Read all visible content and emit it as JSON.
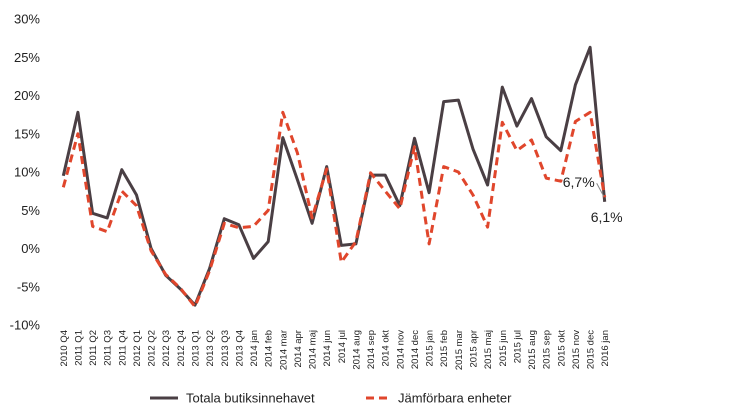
{
  "chart_data": {
    "type": "line",
    "title": "",
    "xlabel": "",
    "ylabel": "",
    "ylim": [
      -10,
      30
    ],
    "yticks": [
      -10,
      -5,
      0,
      5,
      10,
      15,
      20,
      25,
      30
    ],
    "ytick_labels": [
      "-10%",
      "-5%",
      "0%",
      "5%",
      "10%",
      "15%",
      "20%",
      "25%",
      "30%"
    ],
    "grid": false,
    "legend_position": "bottom",
    "categories": [
      "2010 Q4",
      "2011 Q1",
      "2011 Q2",
      "2011 Q3",
      "2011 Q4",
      "2012 Q1",
      "2012 Q2",
      "2012 Q3",
      "2012 Q4",
      "2013 Q1",
      "2013 Q2",
      "2013 Q3",
      "2013 Q4",
      "2014 jan",
      "2014 feb",
      "2014 mar",
      "2014 apr",
      "2014 maj",
      "2014 jun",
      "2014 jul",
      "2014 aug",
      "2014 sep",
      "2014 okt",
      "2014 nov",
      "2014 dec",
      "2015 jan",
      "2015 feb",
      "2015 mar",
      "2015 apr",
      "2015 maj",
      "2015 jun",
      "2015 jul",
      "2015 aug",
      "2015 sep",
      "2015 okt",
      "2015 nov",
      "2015 dec",
      "2016 jan"
    ],
    "series": [
      {
        "name": "Totala butiksinnehavet",
        "color": "#4a3f44",
        "style": "solid",
        "values": [
          9.5,
          17.8,
          4.6,
          4.0,
          10.3,
          7.0,
          0.0,
          -3.5,
          -5.3,
          -7.4,
          -2.6,
          3.9,
          3.1,
          -1.3,
          0.9,
          14.5,
          9.0,
          3.3,
          10.7,
          0.4,
          0.6,
          9.6,
          9.6,
          5.6,
          14.4,
          7.3,
          19.2,
          19.4,
          13.0,
          8.3,
          21.1,
          16.0,
          19.6,
          14.6,
          12.8,
          21.4,
          26.3,
          6.1
        ]
      },
      {
        "name": "Jämförbara enheter",
        "color": "#e0462c",
        "style": "dashed",
        "values": [
          8.0,
          15.0,
          2.9,
          2.2,
          7.5,
          5.6,
          -0.3,
          -3.4,
          -5.2,
          -7.6,
          -2.9,
          3.3,
          2.7,
          2.9,
          5.0,
          17.8,
          12.5,
          4.0,
          10.4,
          -1.8,
          0.9,
          9.9,
          7.5,
          5.2,
          13.3,
          0.6,
          10.7,
          10.0,
          7.0,
          2.8,
          16.5,
          12.8,
          14.2,
          9.2,
          8.8,
          16.6,
          17.8,
          6.7
        ]
      }
    ],
    "annotations": [
      {
        "text": "6,7%",
        "series": 1,
        "index": 37
      },
      {
        "text": "6,1%",
        "series": 0,
        "index": 37
      }
    ]
  }
}
